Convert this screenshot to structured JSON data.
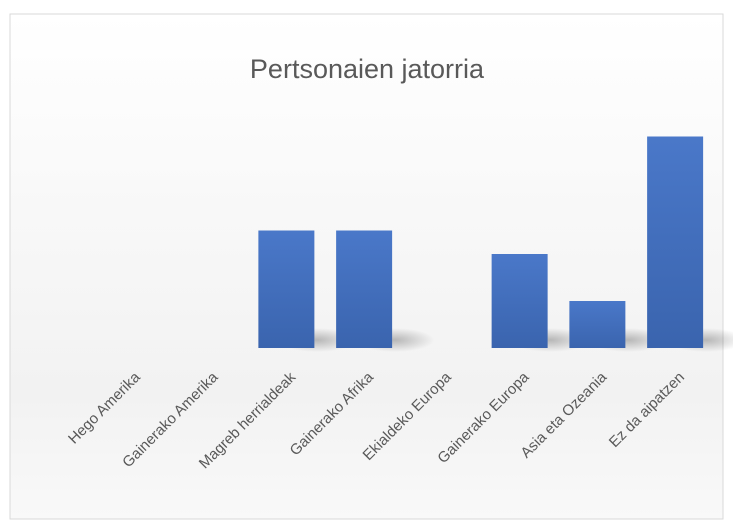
{
  "chart_data": {
    "type": "bar",
    "title": "Pertsonaien jatorria",
    "categories": [
      "Hego Amerika",
      "Gainerako Amerika",
      "Magreb herrialdeak",
      "Gainerako Afrika",
      "Ekialdeko Europa",
      "Gainerako Europa",
      "Asia eta Ozeania",
      "Ez da aipatzen"
    ],
    "values": [
      0,
      0,
      5,
      5,
      0,
      4,
      2,
      9
    ],
    "color": "#4472c4",
    "ylim": [
      0,
      10
    ],
    "grid": false
  }
}
